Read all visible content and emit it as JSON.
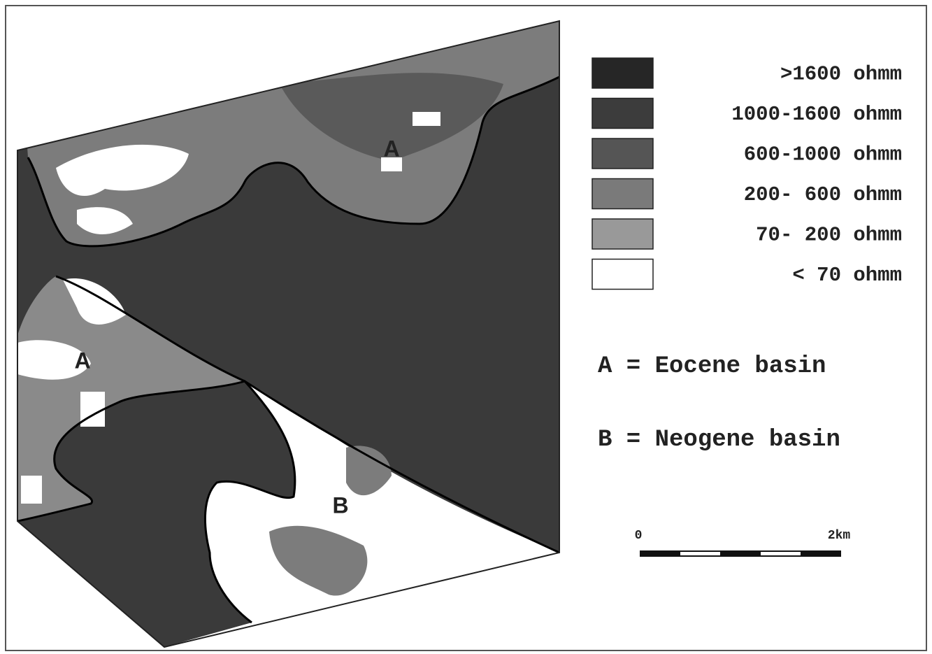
{
  "legend": {
    "items": [
      {
        "label": ">1600 ohmm",
        "color": "#262626"
      },
      {
        "label": "1000-1600 ohmm",
        "color": "#3c3c3c"
      },
      {
        "label": "600-1000 ohmm",
        "color": "#555555"
      },
      {
        "label": "200- 600 ohmm",
        "color": "#7a7a7a"
      },
      {
        "label": "70- 200 ohmm",
        "color": "#999999"
      },
      {
        "label": "< 70 ohmm",
        "color": "#ffffff"
      }
    ]
  },
  "map": {
    "labels": [
      "A",
      "A",
      "B"
    ]
  },
  "key": [
    "A = Eocene basin",
    "B = Neogene basin"
  ],
  "scale_bar": {
    "labels": [
      "0",
      "2km"
    ]
  }
}
